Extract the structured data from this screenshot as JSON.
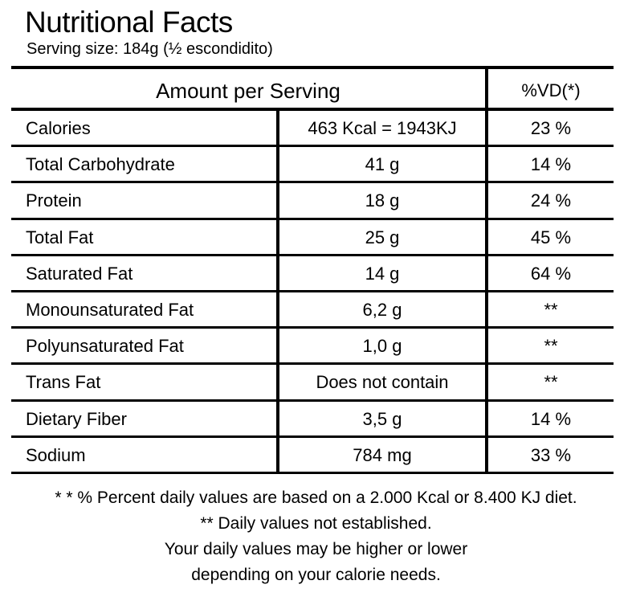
{
  "title": "Nutritional Facts",
  "serving_size": "Serving size: 184g (½ escondidito)",
  "table": {
    "header_amount": "Amount per Serving",
    "header_vd": "%VD(*)",
    "rows": [
      {
        "name": "Calories",
        "amount": "463 Kcal = 1943KJ",
        "vd": "23 %"
      },
      {
        "name": "Total Carbohydrate",
        "amount": "41 g",
        "vd": "14 %"
      },
      {
        "name": "Protein",
        "amount": "18 g",
        "vd": "24 %"
      },
      {
        "name": "Total Fat",
        "amount": "25 g",
        "vd": "45 %"
      },
      {
        "name": "Saturated Fat",
        "amount": "14 g",
        "vd": "64 %"
      },
      {
        "name": "Monounsaturated Fat",
        "amount": "6,2 g",
        "vd": "**"
      },
      {
        "name": "Polyunsaturated Fat",
        "amount": "1,0 g",
        "vd": "**"
      },
      {
        "name": "Trans Fat",
        "amount": "Does not contain",
        "vd": "**"
      },
      {
        "name": "Dietary Fiber",
        "amount": "3,5 g",
        "vd": "14 %"
      },
      {
        "name": "Sodium",
        "amount": "784 mg",
        "vd": "33 %"
      }
    ]
  },
  "footnotes": [
    "* * % Percent daily values are based on a 2.000 Kcal or 8.400 KJ diet.",
    "** Daily values not established.",
    "Your daily values may be higher or lower",
    "depending on your calorie needs."
  ]
}
